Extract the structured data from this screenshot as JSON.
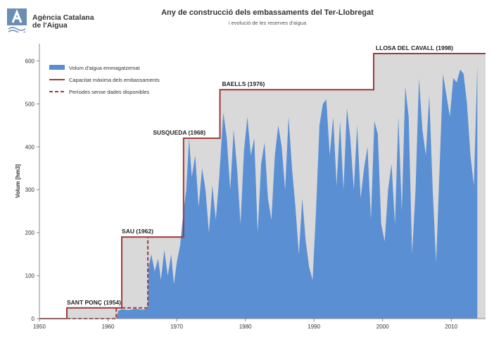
{
  "organization": {
    "name_line1": "Agència Catalana",
    "name_line2": "de l'Aigua"
  },
  "chart_data": {
    "type": "area",
    "title": "Any de construcció dels embassaments del Ter-Llobregat",
    "subtitle": "i evolució de les reserves d'aigua",
    "ylabel": "Volum [hm3]",
    "xlabel": "",
    "xlim": [
      1950,
      2015
    ],
    "ylim": [
      0,
      640
    ],
    "xticks": [
      1950,
      1960,
      1970,
      1980,
      1990,
      2000,
      2010
    ],
    "yticks": [
      0,
      100,
      200,
      300,
      400,
      500,
      600
    ],
    "grid": false,
    "legend_position": "top-left",
    "legend": [
      {
        "label": "Volum d'aigua emmagatzemat",
        "style": "area"
      },
      {
        "label": "Capacitat màxima dels embassaments",
        "style": "solid-line"
      },
      {
        "label": "Períodes sense dades disponibles",
        "style": "dashed-line"
      }
    ],
    "colors": {
      "volume": "#5b8fd4",
      "capacity_line": "#9e3a3a",
      "capacity_fill": "#d9d9d9"
    },
    "capacity": {
      "name": "Capacitat màxima dels embassaments",
      "x": [
        1950,
        1954,
        1954,
        1962,
        1962,
        1971,
        1971,
        1976.3,
        1976.3,
        1998.7,
        1998.7,
        2015
      ],
      "y": [
        0,
        0,
        25,
        25,
        190,
        190,
        420,
        420,
        533,
        533,
        617,
        617
      ]
    },
    "no_data": {
      "name": "Períodes sense dades disponibles",
      "segments": [
        {
          "x": [
            1954,
            1961.2,
            1961.2
          ],
          "y": [
            0,
            0,
            25
          ]
        },
        {
          "x": [
            1962,
            1965.8,
            1965.8
          ],
          "y": [
            25,
            25,
            190
          ]
        }
      ]
    },
    "annotations": [
      {
        "label": "SANT PONÇ (1954)",
        "x": 1954,
        "y": 25
      },
      {
        "label": "SAU (1962)",
        "x": 1962,
        "y": 190
      },
      {
        "label": "SUSQUEDA (1968)",
        "x": 1969,
        "y": 420
      },
      {
        "label": "BAELLS (1976)",
        "x": 1976.6,
        "y": 533
      },
      {
        "label": "LLOSA DEL CAVALL (1998)",
        "x": 1999,
        "y": 617
      }
    ],
    "series": [
      {
        "name": "Volum d'aigua emmagatzemat",
        "x": [
          1961.2,
          1961.5,
          1962,
          1963,
          1964,
          1965,
          1965.8,
          1965.9,
          1966.3,
          1966.8,
          1967.3,
          1967.7,
          1968.2,
          1968.7,
          1969.2,
          1969.6,
          1970,
          1970.5,
          1971,
          1971.4,
          1971.8,
          1972.2,
          1972.7,
          1973.2,
          1973.7,
          1974.2,
          1974.7,
          1975.2,
          1975.7,
          1976.2,
          1976.8,
          1977.3,
          1977.8,
          1978.3,
          1978.8,
          1979.3,
          1979.8,
          1980.3,
          1980.8,
          1981.3,
          1981.8,
          1982.3,
          1982.8,
          1983.3,
          1983.8,
          1984.3,
          1984.8,
          1985.3,
          1985.8,
          1986.3,
          1986.8,
          1987.3,
          1987.8,
          1988.3,
          1988.8,
          1989.3,
          1989.8,
          1990.3,
          1990.8,
          1991.3,
          1991.8,
          1992.3,
          1992.8,
          1993.3,
          1993.8,
          1994.3,
          1994.8,
          1995.3,
          1995.8,
          1996.3,
          1996.8,
          1997.3,
          1997.8,
          1998.3,
          1998.8,
          1999.3,
          1999.8,
          2000.3,
          2000.8,
          2001.3,
          2001.8,
          2002.3,
          2002.8,
          2003.3,
          2003.8,
          2004.3,
          2004.8,
          2005.3,
          2005.8,
          2006.3,
          2006.8,
          2007.3,
          2007.8,
          2008.3,
          2008.8,
          2009.3,
          2009.8,
          2010.3,
          2010.8,
          2011.3,
          2011.8,
          2012.3,
          2012.8,
          2013.3,
          2013.8
        ],
        "values": [
          0,
          18,
          22,
          20,
          23,
          21,
          24,
          120,
          150,
          110,
          140,
          90,
          160,
          100,
          150,
          80,
          130,
          170,
          250,
          300,
          420,
          330,
          380,
          260,
          350,
          300,
          200,
          310,
          230,
          330,
          480,
          420,
          300,
          440,
          350,
          220,
          390,
          470,
          380,
          420,
          200,
          360,
          410,
          280,
          230,
          380,
          450,
          400,
          300,
          470,
          350,
          260,
          150,
          280,
          180,
          120,
          90,
          250,
          450,
          500,
          510,
          380,
          470,
          310,
          460,
          300,
          490,
          420,
          300,
          450,
          280,
          350,
          400,
          230,
          460,
          430,
          220,
          180,
          300,
          360,
          220,
          470,
          250,
          540,
          470,
          150,
          300,
          560,
          440,
          380,
          520,
          300,
          130,
          350,
          570,
          520,
          470,
          560,
          550,
          580,
          570,
          500,
          380,
          310,
          590
        ]
      }
    ]
  }
}
